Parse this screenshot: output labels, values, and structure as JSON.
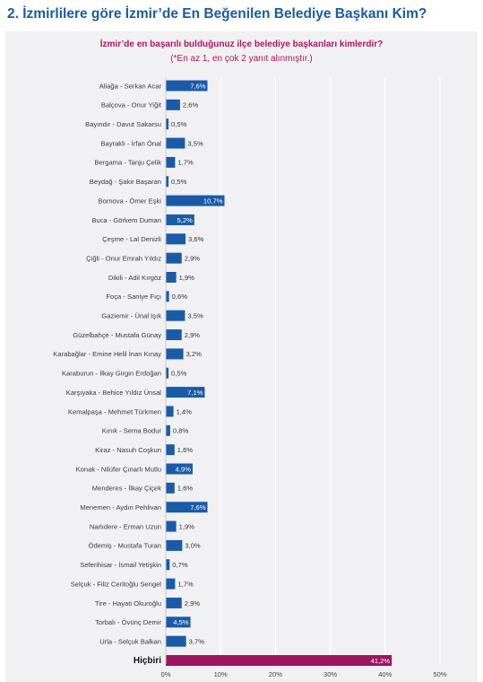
{
  "page": {
    "title": "2. İzmirlilere göre İzmir’de En Beğenilen Belediye Başkanı Kim?"
  },
  "chart_data": {
    "type": "bar",
    "orientation": "horizontal",
    "title": "İzmir’de en başarılı bulduğunuz ilçe belediye başkanları kimlerdir?",
    "subtitle": "(*En az 1, en çok 2 yanıt alınmıştır.)",
    "categories": [
      "Aliağa - Serkan Acar",
      "Balçova - Onur Yiğit",
      "Bayındır - Davut Sakarsu",
      "Bayraklı - İrfan Önal",
      "Bergama - Tanju Çelik",
      "Beydağ - Şakir Başaran",
      "Bornova - Ömer Eşki",
      "Buca - Görkem Duman",
      "Çeşme - Lal Denizli",
      "Çiğli - Onur Emrah Yıldız",
      "Dikili - Adil Kırgöz",
      "Foça - Saniye Fıçı",
      "Gaziemir - Ünal Işık",
      "Güzelbahçe - Mustafa Günay",
      "Karabağlar - Emine Helil İnan Kınay",
      "Karaburun - İlkay Girgin Erdoğan",
      "Karşıyaka - Behice Yıldız Ünsal",
      "Kemalpaşa - Mehmet Türkmen",
      "Kınık - Sema Bodur",
      "Kiraz - Nasuh Coşkun",
      "Konak - Nilüfer Çınarlı Mutlu",
      "Menderes - İlkay Çiçek",
      "Menemen - Aydın Pehlivan",
      "Narlıdere - Erman Uzun",
      "Ödemiş - Mustafa Turan",
      "Seferihisar - İsmail Yetişkin",
      "Selçuk - Filiz Ceritoğlu Sengel",
      "Tire - Hayati Okuroğlu",
      "Torbalı - Övünç Demir",
      "Urla - Selçuk Balkan",
      "Hiçbiri"
    ],
    "values": [
      7.6,
      2.6,
      0.5,
      3.5,
      1.7,
      0.5,
      10.7,
      5.2,
      3.6,
      2.9,
      1.9,
      0.6,
      3.5,
      2.9,
      3.2,
      0.5,
      7.1,
      1.4,
      0.8,
      1.6,
      4.9,
      1.6,
      7.6,
      1.9,
      3.0,
      0.7,
      1.7,
      2.9,
      4.5,
      3.7,
      41.2
    ],
    "value_labels": [
      "7,6%",
      "2,6%",
      "0,5%",
      "3,5%",
      "1,7%",
      "0,5%",
      "10,7%",
      "5,2%",
      "3,6%",
      "2,9%",
      "1,9%",
      "0,6%",
      "3,5%",
      "2,9%",
      "3,2%",
      "0,5%",
      "7,1%",
      "1,4%",
      "0,8%",
      "1,6%",
      "4,9%",
      "1,6%",
      "7,6%",
      "1,9%",
      "3,0%",
      "0,7%",
      "1,7%",
      "2,9%",
      "4,5%",
      "3,7%",
      "41,2%"
    ],
    "highlight_category": "Hiçbiri",
    "xlim": [
      0,
      50
    ],
    "xticks": [
      "0%",
      "10%",
      "20%",
      "30%",
      "40%",
      "50%"
    ],
    "grid": true,
    "colors": {
      "bar": "#1a5ba8",
      "highlight_bar": "#9b1561",
      "title": "#b0155e",
      "page_title": "#1a5ba8",
      "grid": "#ffffff",
      "panel_background": "#f1f1f3"
    }
  }
}
